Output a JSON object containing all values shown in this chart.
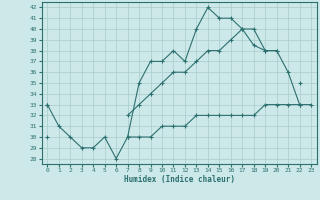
{
  "x": [
    0,
    1,
    2,
    3,
    4,
    5,
    6,
    7,
    8,
    9,
    10,
    11,
    12,
    13,
    14,
    15,
    16,
    17,
    18,
    19,
    20,
    21,
    22,
    23
  ],
  "line1": [
    33,
    31,
    30,
    29,
    29,
    30,
    28,
    30,
    35,
    37,
    37,
    38,
    37,
    40,
    42,
    41,
    41,
    40,
    40,
    38,
    38,
    36,
    33,
    null
  ],
  "line2": [
    33,
    null,
    null,
    null,
    null,
    null,
    null,
    32,
    33,
    34,
    35,
    36,
    36,
    37,
    38,
    38,
    39,
    40,
    38.5,
    38,
    38,
    null,
    35,
    null
  ],
  "line3": [
    30,
    null,
    null,
    null,
    null,
    null,
    null,
    30,
    30,
    30,
    31,
    31,
    31,
    32,
    32,
    32,
    32,
    32,
    32,
    33,
    33,
    33,
    33,
    33
  ],
  "bg_color": "#cce8e8",
  "line_color": "#2d7070",
  "grid_color": "#aacccc",
  "xlabel": "Humidex (Indice chaleur)",
  "ylim": [
    27.5,
    42.5
  ],
  "xlim": [
    -0.5,
    23.5
  ],
  "yticks": [
    28,
    29,
    30,
    31,
    32,
    33,
    34,
    35,
    36,
    37,
    38,
    39,
    40,
    41,
    42
  ],
  "xticks": [
    0,
    1,
    2,
    3,
    4,
    5,
    6,
    7,
    8,
    9,
    10,
    11,
    12,
    13,
    14,
    15,
    16,
    17,
    18,
    19,
    20,
    21,
    22,
    23
  ]
}
